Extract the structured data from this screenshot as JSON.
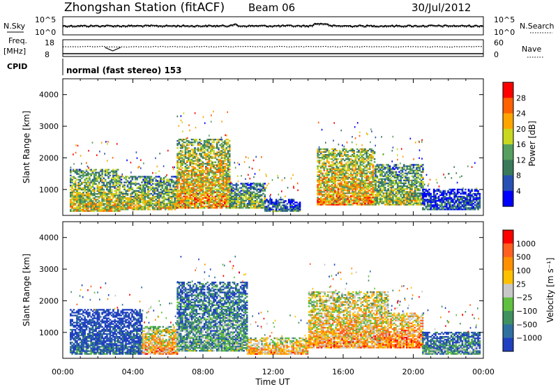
{
  "header": {
    "station": "Zhongshan Station (fitACF)",
    "beam": "Beam 06",
    "date": "30/Jul/2012"
  },
  "status_panels": {
    "left_labels": {
      "nsky": "N.Sky",
      "freq": "Freq.",
      "freq_unit": "[MHz]",
      "cpid": "CPID"
    },
    "right_labels": {
      "nsearch": "N.Search",
      "nave": "Nave"
    },
    "nsky_ticks": [
      "10^5",
      "10^0"
    ],
    "nsearch_ticks": [
      "10^5",
      "10^0"
    ],
    "freq_ticks": [
      "18",
      "8"
    ],
    "nave_ticks": [
      "60",
      "0"
    ],
    "cpid_text": "normal (fast stereo) 153"
  },
  "chart_data": [
    {
      "type": "heatmap",
      "panel": "power",
      "ylabel": "Slant Range [km]",
      "ylim": [
        180,
        4500
      ],
      "yticks": [
        "4000",
        "3000",
        "2000",
        "1000"
      ],
      "colorbar": {
        "label": "Power [dB]",
        "ticks": [
          "28",
          "24",
          "20",
          "16",
          "12",
          "8",
          "4"
        ],
        "colors": [
          "#0000ff",
          "#2850b4",
          "#3a7a5a",
          "#55a060",
          "#c8d820",
          "#ffa500",
          "#ff6000",
          "#ff0000"
        ]
      },
      "time_range_hours": [
        0,
        24
      ],
      "blobs": [
        {
          "t0": 0.4,
          "t1": 3.2,
          "r0": 300,
          "r1": 1650,
          "level": 0.6
        },
        {
          "t0": 3.2,
          "t1": 6.5,
          "r0": 350,
          "r1": 1400,
          "level": 0.55
        },
        {
          "t0": 6.5,
          "t1": 9.5,
          "r0": 400,
          "r1": 2600,
          "level": 0.7
        },
        {
          "t0": 9.5,
          "t1": 11.5,
          "r0": 400,
          "r1": 1200,
          "level": 0.5
        },
        {
          "t0": 11.5,
          "t1": 13.5,
          "r0": 300,
          "r1": 700,
          "level": 0.3
        },
        {
          "t0": 14.5,
          "t1": 17.8,
          "r0": 500,
          "r1": 2300,
          "level": 0.7
        },
        {
          "t0": 17.8,
          "t1": 20.5,
          "r0": 500,
          "r1": 1800,
          "level": 0.55
        },
        {
          "t0": 20.5,
          "t1": 23.8,
          "r0": 350,
          "r1": 1000,
          "level": 0.25
        }
      ]
    },
    {
      "type": "heatmap",
      "panel": "velocity",
      "xlabel": "Time UT",
      "ylabel": "Slant Range [km]",
      "ylim": [
        180,
        4500
      ],
      "yticks": [
        "4000",
        "3000",
        "2000",
        "1000"
      ],
      "xticks": [
        "00:00",
        "04:00",
        "08:00",
        "12:00",
        "16:00",
        "20:00",
        "00:00"
      ],
      "colorbar": {
        "label": "Velocity [m s⁻¹]",
        "ticks": [
          "1000",
          "500",
          "100",
          "25",
          "−25",
          "−100",
          "−500",
          "−1000"
        ],
        "colors": [
          "#2040c0",
          "#3070a0",
          "#409060",
          "#60c040",
          "#c8c8c8",
          "#ffc000",
          "#ff9000",
          "#ff6020",
          "#ff0000"
        ]
      },
      "time_range_hours": [
        0,
        24
      ],
      "blobs": [
        {
          "t0": 0.4,
          "t1": 4.5,
          "r0": 300,
          "r1": 1700,
          "level": 0.15
        },
        {
          "t0": 4.5,
          "t1": 6.5,
          "r0": 300,
          "r1": 1200,
          "level": 0.7
        },
        {
          "t0": 6.5,
          "t1": 10.5,
          "r0": 400,
          "r1": 2600,
          "level": 0.35
        },
        {
          "t0": 10.5,
          "t1": 14.0,
          "r0": 300,
          "r1": 800,
          "level": 0.7
        },
        {
          "t0": 14.0,
          "t1": 18.5,
          "r0": 500,
          "r1": 2300,
          "level": 0.7
        },
        {
          "t0": 18.5,
          "t1": 20.5,
          "r0": 500,
          "r1": 1600,
          "level": 0.8
        },
        {
          "t0": 20.5,
          "t1": 23.8,
          "r0": 300,
          "r1": 1000,
          "level": 0.3
        }
      ]
    }
  ]
}
